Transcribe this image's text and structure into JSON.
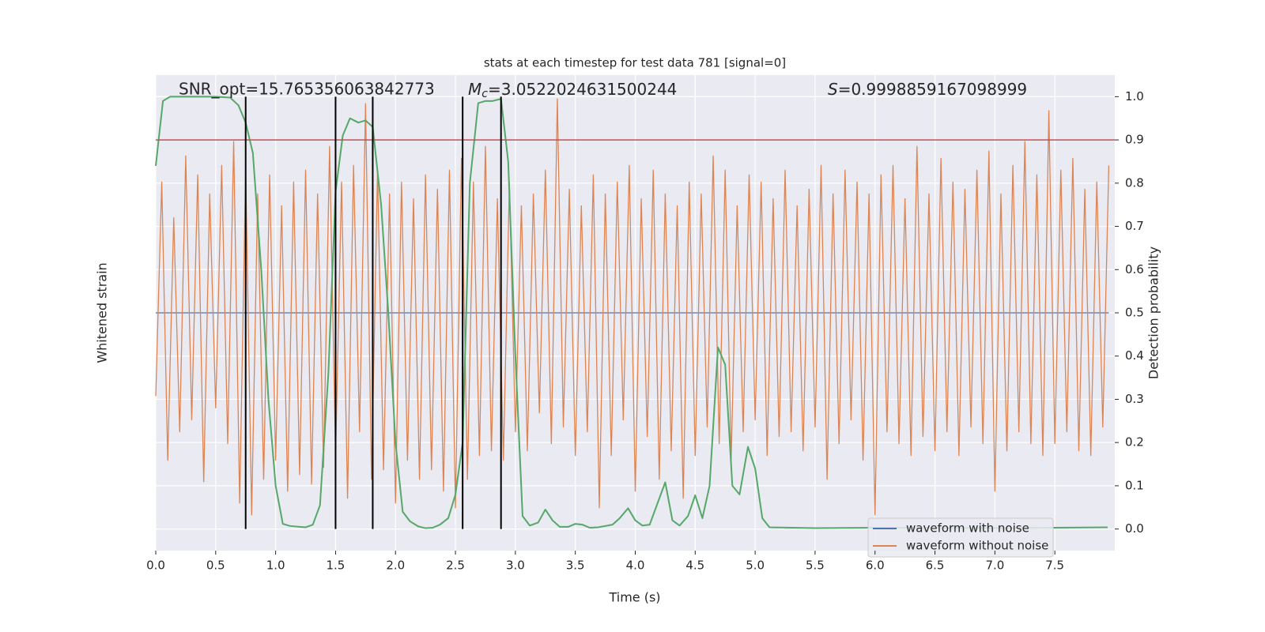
{
  "chart_data": {
    "type": "line",
    "title": "stats at each timestep for test data 781 [signal=0]",
    "xlabel": "Time (s)",
    "ylabel": "Whitened strain",
    "y2label": "Detection probability",
    "xlim": [
      0,
      8
    ],
    "xticks": [
      {
        "value": 0,
        "label": "0.0"
      },
      0.5,
      {
        "value": 1,
        "label": "1.0"
      },
      1.5,
      {
        "value": 2,
        "label": "2.0"
      },
      2.5,
      {
        "value": 3,
        "label": "3.0"
      },
      3.5,
      {
        "value": 4,
        "label": "4.0"
      },
      4.5,
      {
        "value": 5,
        "label": "5.0"
      },
      5.5,
      {
        "value": 6,
        "label": "6.0"
      },
      6.5,
      {
        "value": 7,
        "label": "7.0"
      },
      7.5
    ],
    "ylim": [
      -1,
      1
    ],
    "y2lim": [
      -0.05,
      1.05
    ],
    "y2ticks": [
      {
        "value": 0,
        "label": "0.0"
      },
      0.1,
      0.2,
      0.3,
      0.4,
      0.5,
      0.6,
      0.7,
      0.8,
      0.9,
      {
        "value": 1,
        "label": "1.0"
      }
    ],
    "grid": true,
    "legend": "lower right",
    "series": [
      {
        "name": "waveform with noise",
        "color": "#4c72b0",
        "x": [
          0,
          7.95
        ],
        "values": [
          0,
          0
        ]
      },
      {
        "name": "waveform without noise",
        "color": "#dd8452",
        "x": [
          0,
          0.05,
          0.1,
          0.15,
          0.2,
          0.25,
          0.3,
          0.35,
          0.4,
          0.45,
          0.5,
          0.55,
          0.6,
          0.65,
          0.7,
          0.75,
          0.8,
          0.85,
          0.9,
          0.95,
          1,
          1.05,
          1.1,
          1.15,
          1.2,
          1.25,
          1.3,
          1.35,
          1.4,
          1.45,
          1.5,
          1.55,
          1.6,
          1.65,
          1.7,
          1.75,
          1.8,
          1.85,
          1.9,
          1.95,
          2,
          2.05,
          2.1,
          2.15,
          2.2,
          2.25,
          2.3,
          2.35,
          2.4,
          2.45,
          2.5,
          2.55,
          2.6,
          2.65,
          2.7,
          2.75,
          2.8,
          2.85,
          2.9,
          2.95,
          3,
          3.05,
          3.1,
          3.15,
          3.2,
          3.25,
          3.3,
          3.35,
          3.4,
          3.45,
          3.5,
          3.55,
          3.6,
          3.65,
          3.7,
          3.75,
          3.8,
          3.85,
          3.9,
          3.95,
          4,
          4.05,
          4.1,
          4.15,
          4.2,
          4.25,
          4.3,
          4.35,
          4.4,
          4.45,
          4.5,
          4.55,
          4.6,
          4.65,
          4.7,
          4.75,
          4.8,
          4.85,
          4.9,
          4.95,
          5,
          5.05,
          5.1,
          5.15,
          5.2,
          5.25,
          5.3,
          5.35,
          5.4,
          5.45,
          5.5,
          5.55,
          5.6,
          5.65,
          5.7,
          5.75,
          5.8,
          5.85,
          5.9,
          5.95,
          6,
          6.05,
          6.1,
          6.15,
          6.2,
          6.25,
          6.3,
          6.35,
          6.4,
          6.45,
          6.5,
          6.55,
          6.6,
          6.65,
          6.7,
          6.75,
          6.8,
          6.85,
          6.9,
          6.95,
          7,
          7.05,
          7.1,
          7.15,
          7.2,
          7.25,
          7.3,
          7.35,
          7.4,
          7.45,
          7.5,
          7.55,
          7.6,
          7.65,
          7.7,
          7.75,
          7.8,
          7.85,
          7.9,
          7.95
        ],
        "values": [
          -0.35,
          0.55,
          -0.62,
          0.4,
          -0.5,
          0.66,
          -0.45,
          0.58,
          -0.71,
          0.5,
          -0.4,
          0.62,
          -0.55,
          0.72,
          -0.8,
          0.6,
          -0.85,
          0.5,
          -0.7,
          0.58,
          -0.62,
          0.45,
          -0.75,
          0.55,
          -0.68,
          0.6,
          -0.72,
          0.5,
          -0.65,
          0.7,
          -0.6,
          0.55,
          -0.78,
          0.62,
          -0.5,
          0.88,
          -0.7,
          0.6,
          -0.66,
          0.5,
          -0.8,
          0.55,
          -0.62,
          0.48,
          -0.7,
          0.58,
          -0.66,
          0.52,
          -0.75,
          0.6,
          -0.82,
          0.65,
          -0.7,
          0.55,
          -0.6,
          0.7,
          -0.58,
          0.48,
          -0.62,
          0.55,
          -0.5,
          0.45,
          -0.58,
          0.5,
          -0.42,
          0.6,
          -0.55,
          0.9,
          -0.48,
          0.52,
          -0.6,
          0.45,
          -0.5,
          0.58,
          -0.82,
          0.5,
          -0.6,
          0.55,
          -0.45,
          0.62,
          -0.75,
          0.48,
          -0.52,
          0.6,
          -0.7,
          0.5,
          -0.58,
          0.45,
          -0.78,
          0.55,
          -0.6,
          0.5,
          -0.48,
          0.66,
          -0.55,
          0.6,
          -0.62,
          0.45,
          -0.5,
          0.58,
          -0.45,
          0.55,
          -0.6,
          0.48,
          -0.52,
          0.6,
          -0.5,
          0.45,
          -0.58,
          0.52,
          -0.48,
          0.62,
          -0.7,
          0.5,
          -0.55,
          0.6,
          -0.45,
          0.55,
          -0.62,
          0.5,
          -0.85,
          0.58,
          -0.5,
          0.62,
          -0.55,
          0.48,
          -0.6,
          0.7,
          -0.52,
          0.5,
          -0.58,
          0.65,
          -0.5,
          0.55,
          -0.6,
          0.52,
          -0.48,
          0.6,
          -0.55,
          0.68,
          -0.75,
          0.5,
          -0.58,
          0.62,
          -0.5,
          0.72,
          -0.55,
          0.58,
          -0.6,
          0.85,
          -0.55,
          0.6,
          -0.5,
          0.65,
          -0.58,
          0.52,
          -0.6,
          0.55,
          -0.48,
          0.62
        ]
      }
    ],
    "probability": {
      "color": "#55a868",
      "axis": "y2",
      "x": [
        0,
        0.06,
        0.12,
        0.19,
        0.25,
        0.5,
        0.62,
        0.69,
        0.75,
        0.81,
        0.88,
        0.94,
        1.0,
        1.06,
        1.12,
        1.25,
        1.31,
        1.37,
        1.44,
        1.5,
        1.56,
        1.62,
        1.69,
        1.75,
        1.81,
        1.88,
        1.94,
        2.0,
        2.06,
        2.12,
        2.19,
        2.25,
        2.31,
        2.37,
        2.44,
        2.5,
        2.56,
        2.62,
        2.69,
        2.75,
        2.81,
        2.88,
        2.94,
        3.0,
        3.06,
        3.12,
        3.19,
        3.25,
        3.31,
        3.37,
        3.44,
        3.5,
        3.56,
        3.62,
        3.69,
        3.81,
        3.87,
        3.94,
        4.0,
        4.06,
        4.12,
        4.25,
        4.31,
        4.37,
        4.44,
        4.5,
        4.56,
        4.62,
        4.69,
        4.75,
        4.81,
        4.87,
        4.94,
        5.0,
        5.06,
        5.12,
        5.5,
        6.0,
        7.0,
        7.94
      ],
      "values": [
        0.84,
        0.99,
        1.0,
        1.0,
        1.0,
        1.0,
        0.998,
        0.98,
        0.94,
        0.87,
        0.6,
        0.3,
        0.1,
        0.012,
        0.007,
        0.004,
        0.01,
        0.055,
        0.36,
        0.78,
        0.91,
        0.95,
        0.94,
        0.945,
        0.93,
        0.75,
        0.5,
        0.2,
        0.04,
        0.018,
        0.006,
        0.002,
        0.003,
        0.01,
        0.025,
        0.08,
        0.2,
        0.8,
        0.985,
        0.99,
        0.99,
        0.995,
        0.85,
        0.4,
        0.03,
        0.008,
        0.015,
        0.045,
        0.02,
        0.005,
        0.005,
        0.012,
        0.01,
        0.003,
        0.004,
        0.01,
        0.025,
        0.048,
        0.02,
        0.008,
        0.01,
        0.108,
        0.02,
        0.008,
        0.03,
        0.078,
        0.025,
        0.1,
        0.42,
        0.38,
        0.1,
        0.08,
        0.19,
        0.14,
        0.025,
        0.004,
        0.002,
        0.003,
        0.002,
        0.004
      ]
    },
    "threshold": {
      "value": 0.9,
      "color": "#c44e52",
      "axis": "y2"
    },
    "markers": {
      "x": [
        0.75,
        1.5,
        1.81,
        2.56,
        2.88
      ],
      "ymin": 0,
      "ymax": 1,
      "color": "#000000",
      "axis": "y2"
    },
    "annotations": [
      {
        "text": "SNR_opt=15.765356063842773"
      },
      {
        "symbol": "M",
        "subscript": "c",
        "text": "=3.0522024631500244"
      },
      {
        "symbol": "S",
        "text": "=0.9998859167098999"
      }
    ]
  }
}
